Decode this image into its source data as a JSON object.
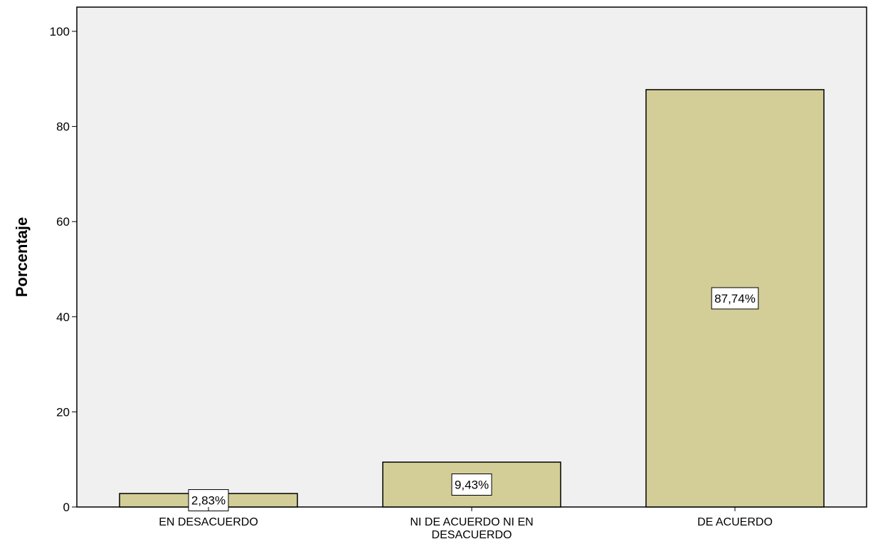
{
  "chart_data": {
    "type": "bar",
    "categories": [
      "EN DESACUERDO",
      "NI DE ACUERDO NI EN DESACUERDO",
      "DE ACUERDO"
    ],
    "category_lines": [
      [
        "EN DESACUERDO"
      ],
      [
        "NI DE ACUERDO NI EN",
        "DESACUERDO"
      ],
      [
        "DE ACUERDO"
      ]
    ],
    "values": [
      2.83,
      9.43,
      87.74
    ],
    "data_labels": [
      "2,83%",
      "9,43%",
      "87,74%"
    ],
    "ylabel": "Porcentaje",
    "xlabel": "",
    "ylim": [
      0,
      100
    ],
    "yticks": [
      0,
      20,
      40,
      60,
      80,
      100
    ],
    "grid": false,
    "colors": {
      "bar_fill": "#D3CE97",
      "plot_background": "#F0F0F0",
      "label_box": "#FFFFFF"
    }
  }
}
